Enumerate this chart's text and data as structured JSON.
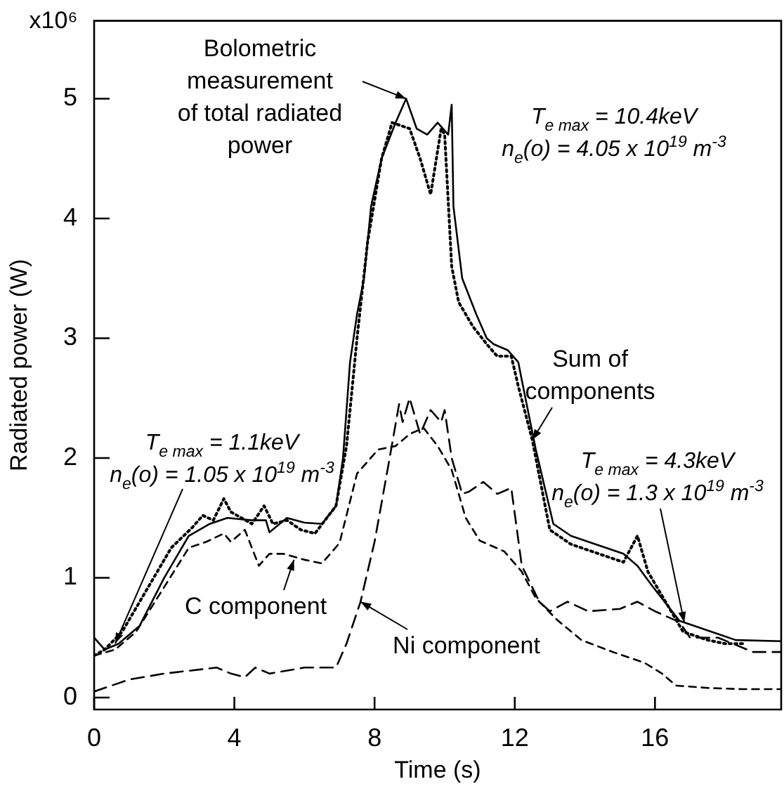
{
  "chart_data": {
    "type": "line",
    "xlabel": "Time (s)",
    "ylabel": "Radiated power (W)",
    "xlim": [
      0,
      19.6
    ],
    "ylim": [
      -0.1,
      5.65
    ],
    "xticks": [
      0,
      4,
      8,
      12,
      16
    ],
    "yticks": [
      0,
      1,
      2,
      3,
      4,
      5
    ],
    "grid": false,
    "legend": false,
    "marker": "none",
    "annotations": [
      "x10⁶",
      {
        "text": "Bolometric\nmeasurement\nof total radiated\npower",
        "x": 8.9,
        "y": 5.0
      },
      "T$_{e max}$ = 10.4keV\nn$_{e}$(o) = 4.05 x 10$^{19}$ m$^{-3}$",
      {
        "text": "Sum of\ncomponents",
        "x": 12.5,
        "y": 2.15
      },
      "T$_{e max}$ = 4.3keV\nn$_{e}$(o) = 1.3 x 10$^{19}$ m$^{-3}$",
      "T$_{e max}$ = 1.1keV\nn$_{e}$(o) = 1.05 x 10$^{19}$ m$^{-3}$",
      {
        "text": "C component",
        "x": 5.7,
        "y": 1.15
      },
      {
        "text": "Ni component",
        "x": 7.6,
        "y": 0.8
      }
    ],
    "series": [
      {
        "color": "#000000",
        "line_style": "solid",
        "x": [
          0,
          0.3,
          0.7,
          1.3,
          2.0,
          2.7,
          3.3,
          3.8,
          4.5,
          4.9,
          5.0,
          5.5,
          6.0,
          6.5,
          6.9,
          7.1,
          7.3,
          7.5,
          7.7,
          7.9,
          8.2,
          8.6,
          8.9,
          9.2,
          9.5,
          9.8,
          10.1,
          10.2,
          10.25,
          10.5,
          10.9,
          11.2,
          11.4,
          11.8,
          12.1,
          12.2,
          12.6,
          13.1,
          13.6,
          14.2,
          15.1,
          15.5,
          15.9,
          16.7,
          17.8,
          18.3,
          19.6
        ],
        "values": [
          0.5,
          0.4,
          0.45,
          0.6,
          1.0,
          1.35,
          1.45,
          1.5,
          1.48,
          1.48,
          1.38,
          1.5,
          1.46,
          1.45,
          1.6,
          2.0,
          2.8,
          3.2,
          3.5,
          4.1,
          4.5,
          4.8,
          5.0,
          4.75,
          4.7,
          4.8,
          4.7,
          4.95,
          4.1,
          3.5,
          3.2,
          3.0,
          2.95,
          2.9,
          2.8,
          2.65,
          2.07,
          1.45,
          1.35,
          1.29,
          1.2,
          1.1,
          0.94,
          0.64,
          0.53,
          0.48,
          0.47
        ]
      },
      {
        "color": "#000000",
        "line_style": "dotted",
        "x": [
          0,
          0.3,
          0.8,
          1.5,
          2.2,
          2.8,
          3.1,
          3.4,
          3.7,
          3.9,
          4.2,
          4.5,
          4.85,
          5.1,
          5.5,
          5.9,
          6.3,
          6.9,
          7.2,
          7.5,
          7.8,
          8.2,
          8.5,
          9.0,
          9.3,
          9.6,
          9.9,
          10.0,
          10.2,
          10.4,
          10.8,
          11.2,
          11.5,
          11.9,
          12.1,
          12.5,
          13.0,
          13.6,
          14.2,
          15.1,
          15.5,
          15.8,
          16.3,
          16.8,
          17.5,
          18.0,
          18.5
        ],
        "values": [
          0.35,
          0.4,
          0.55,
          0.9,
          1.25,
          1.42,
          1.52,
          1.48,
          1.66,
          1.55,
          1.5,
          1.45,
          1.6,
          1.45,
          1.48,
          1.4,
          1.37,
          1.6,
          2.1,
          3.0,
          3.8,
          4.5,
          4.8,
          4.75,
          4.5,
          4.2,
          4.75,
          4.7,
          3.6,
          3.3,
          3.1,
          2.95,
          2.85,
          2.85,
          2.6,
          2.15,
          1.4,
          1.28,
          1.22,
          1.13,
          1.35,
          1.05,
          0.8,
          0.55,
          0.48,
          0.45,
          0.45
        ]
      },
      {
        "color": "#000000",
        "line_style": "dashed",
        "x": [
          0,
          0.6,
          1.2,
          1.8,
          2.7,
          3.2,
          3.7,
          3.9,
          4.3,
          4.7,
          5.0,
          5.4,
          6.0,
          6.5,
          7.0,
          7.5,
          8.1,
          8.6,
          9.0,
          9.4,
          9.8,
          10.2,
          10.6,
          11.0,
          11.7,
          12.2,
          12.6,
          13.2,
          13.9,
          14.8,
          15.7,
          16.2,
          16.6,
          17.5,
          18.5,
          19.6
        ],
        "values": [
          0.35,
          0.4,
          0.55,
          0.83,
          1.25,
          1.3,
          1.37,
          1.3,
          1.4,
          1.1,
          1.2,
          1.2,
          1.15,
          1.12,
          1.29,
          1.87,
          2.07,
          2.1,
          2.2,
          2.25,
          2.1,
          1.9,
          1.5,
          1.31,
          1.22,
          1.05,
          0.83,
          0.65,
          0.48,
          0.38,
          0.29,
          0.2,
          0.1,
          0.08,
          0.07,
          0.07
        ]
      },
      {
        "color": "#000000",
        "line_style": "dashed",
        "x": [
          0,
          1,
          2,
          3.5,
          3.9,
          4.3,
          4.6,
          5.0,
          6.0,
          6.9,
          7.2,
          7.6,
          8.0,
          8.4,
          8.7,
          8.8,
          9.0,
          9.3,
          9.6,
          9.9,
          10.0,
          10.2,
          10.5,
          10.7,
          11.1,
          11.5,
          11.9,
          12.2,
          12.7,
          13.0,
          13.5,
          14.1,
          15.0,
          15.5,
          16.0,
          16.7,
          17.0,
          17.8,
          18.8,
          19.6
        ],
        "values": [
          0.05,
          0.15,
          0.2,
          0.25,
          0.2,
          0.17,
          0.25,
          0.2,
          0.25,
          0.25,
          0.45,
          0.8,
          1.3,
          1.95,
          2.45,
          2.3,
          2.5,
          2.2,
          2.4,
          2.3,
          2.4,
          2.0,
          1.7,
          1.72,
          1.8,
          1.7,
          1.75,
          1.1,
          0.8,
          0.72,
          0.8,
          0.72,
          0.74,
          0.8,
          0.72,
          0.63,
          0.5,
          0.5,
          0.38,
          0.38
        ]
      }
    ]
  }
}
